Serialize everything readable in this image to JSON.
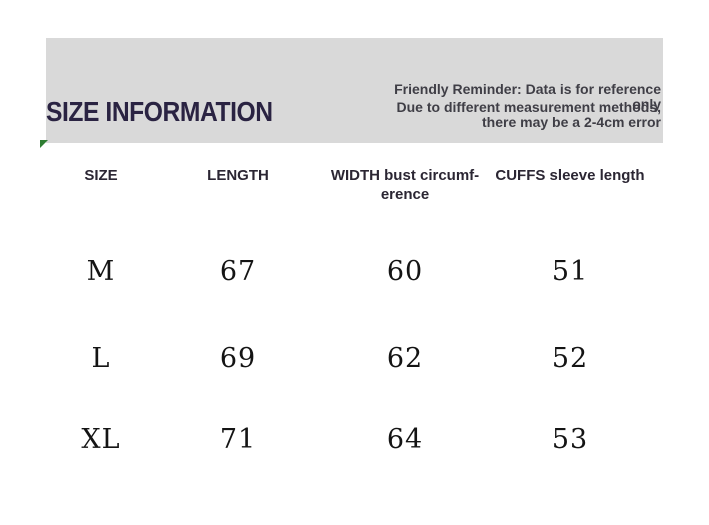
{
  "header": {
    "title": "SIZE INFORMATION",
    "reminder_primary": "Friendly Reminder: Data is for reference only",
    "reminder_secondary": "Due to different measurement methods, there may be a 2-4cm error"
  },
  "table": {
    "columns": [
      "SIZE",
      "LENGTH",
      "WIDTH bust circumf-erence",
      "CUFFS sleeve length"
    ],
    "rows": [
      [
        "M",
        "67",
        "60",
        "51"
      ],
      [
        "L",
        "69",
        "62",
        "52"
      ],
      [
        "XL",
        "71",
        "64",
        "53"
      ]
    ]
  },
  "colors": {
    "band_background": "#d9d9d9",
    "title_text": "#2a2342",
    "reminder_text": "#3f3e46",
    "header_text": "#2b2633",
    "data_text": "#141414",
    "corner_marker_green": "#2e7d32"
  }
}
